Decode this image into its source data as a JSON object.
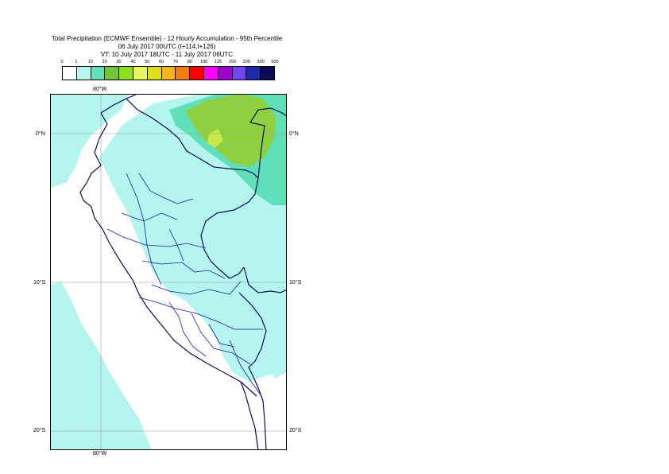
{
  "title": {
    "line1": "Total Precipitation (ECMWF Ensemble) - 12 Hourly Accumulation - 95th Percentile",
    "line2": "06 July 2017 00UTC (t+114,t+126)",
    "line3": "VT: 10 July 2017 18UTC - 11 July 2017 06UTC"
  },
  "legend": {
    "labels": [
      "0",
      "1",
      "10",
      "20",
      "30",
      "40",
      "50",
      "60",
      "70",
      "80",
      "100",
      "125",
      "150",
      "200",
      "300",
      "500"
    ],
    "colors": [
      "#ffffff",
      "#b4f5ef",
      "#5fe0b8",
      "#72c43a",
      "#8de01c",
      "#e6f65a",
      "#dede1c",
      "#f7b51c",
      "#f07d0f",
      "#ff0000",
      "#ff00ff",
      "#a000cc",
      "#6f46f0",
      "#1f28a8",
      "#0b0b55"
    ]
  },
  "axes": {
    "lon_top": "80°W",
    "lon_bottom": "80°W",
    "lat_left": [
      "0°N",
      "10°S",
      "20°S"
    ],
    "lat_right": [
      "0°N",
      "10°S",
      "20°S"
    ]
  },
  "map_colors": {
    "ocean": "#ffffff",
    "band_1_10": "#b4f5ef",
    "band_10_20": "#5fe0b8",
    "band_20_30": "#8fd040",
    "band_30_40": "#c8e84a",
    "coast": "#0b0b55",
    "internal_borders": "#1a1aa8",
    "grid": "#9a9a9a"
  }
}
